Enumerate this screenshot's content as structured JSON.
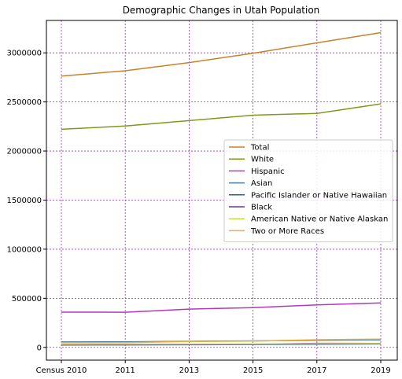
{
  "chart_data": {
    "type": "line",
    "title": "Demographic Changes in Utah Population",
    "xlabel": "",
    "ylabel": "",
    "categories": [
      "Census 2010",
      "2011",
      "2013",
      "2015",
      "2017",
      "2019"
    ],
    "ylim": [
      -130000,
      3330000
    ],
    "yticks": [
      0,
      500000,
      1000000,
      1500000,
      2000000,
      2500000,
      3000000
    ],
    "ytick_labels": [
      "0",
      "500000",
      "1000000",
      "1500000",
      "2000000",
      "2500000",
      "3000000"
    ],
    "grid": true,
    "grid_color": "#9b30c8",
    "legend_position": "center-right",
    "series": [
      {
        "name": "Total",
        "color": "#c8822a",
        "values": [
          2763885,
          2817222,
          2900872,
          2995919,
          3101833,
          3205958
        ]
      },
      {
        "name": "White",
        "color": "#7f9a1a",
        "values": [
          2221719,
          2255000,
          2310000,
          2365000,
          2383000,
          2480000
        ]
      },
      {
        "name": "Hispanic",
        "color": "#b03ab8",
        "values": [
          358340,
          358000,
          390000,
          405000,
          432000,
          452000
        ]
      },
      {
        "name": "Asian",
        "color": "#4a7aa8",
        "values": [
          55285,
          57000,
          62000,
          66000,
          72000,
          77000
        ]
      },
      {
        "name": "Pacific Islander or Native Hawaiian",
        "color": "#2e5f91",
        "values": [
          24584,
          25000,
          27000,
          29000,
          31000,
          34000
        ]
      },
      {
        "name": "Black",
        "color": "#7a2f9e",
        "values": [
          29287,
          30000,
          31000,
          33000,
          41000,
          40000
        ]
      },
      {
        "name": "American Native or Native Alaskan",
        "color": "#c8e040",
        "values": [
          32927,
          33000,
          34000,
          35000,
          36000,
          38000
        ]
      },
      {
        "name": "Two or More Races",
        "color": "#e8b040",
        "values": [
          47195,
          49000,
          60000,
          64000,
          78000,
          84000
        ]
      }
    ]
  }
}
